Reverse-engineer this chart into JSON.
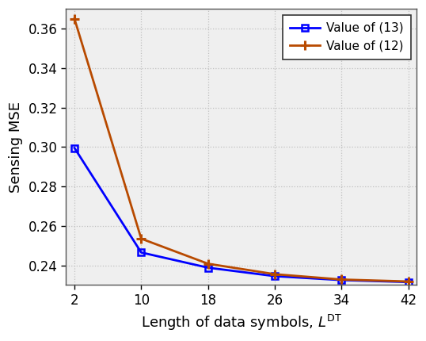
{
  "x": [
    2,
    10,
    18,
    26,
    34,
    42
  ],
  "y_blue": [
    0.2995,
    0.2465,
    0.2388,
    0.2345,
    0.2325,
    0.2315
  ],
  "y_orange": [
    0.365,
    0.2535,
    0.2408,
    0.2355,
    0.2328,
    0.2318
  ],
  "blue_color": "#0000FF",
  "orange_color": "#B84A00",
  "xlabel": "Length of data symbols, $L^{\\mathrm{DT}}$",
  "ylabel": "Sensing MSE",
  "legend_labels": [
    "Value of (13)",
    "Value of (12)"
  ],
  "xlim": [
    2,
    42
  ],
  "ylim": [
    0.23,
    0.37
  ],
  "yticks": [
    0.24,
    0.26,
    0.28,
    0.3,
    0.32,
    0.34,
    0.36
  ],
  "xticks": [
    2,
    10,
    18,
    26,
    34,
    42
  ],
  "grid_color": "#C0C0C0",
  "background_color": "#EFEFEF"
}
